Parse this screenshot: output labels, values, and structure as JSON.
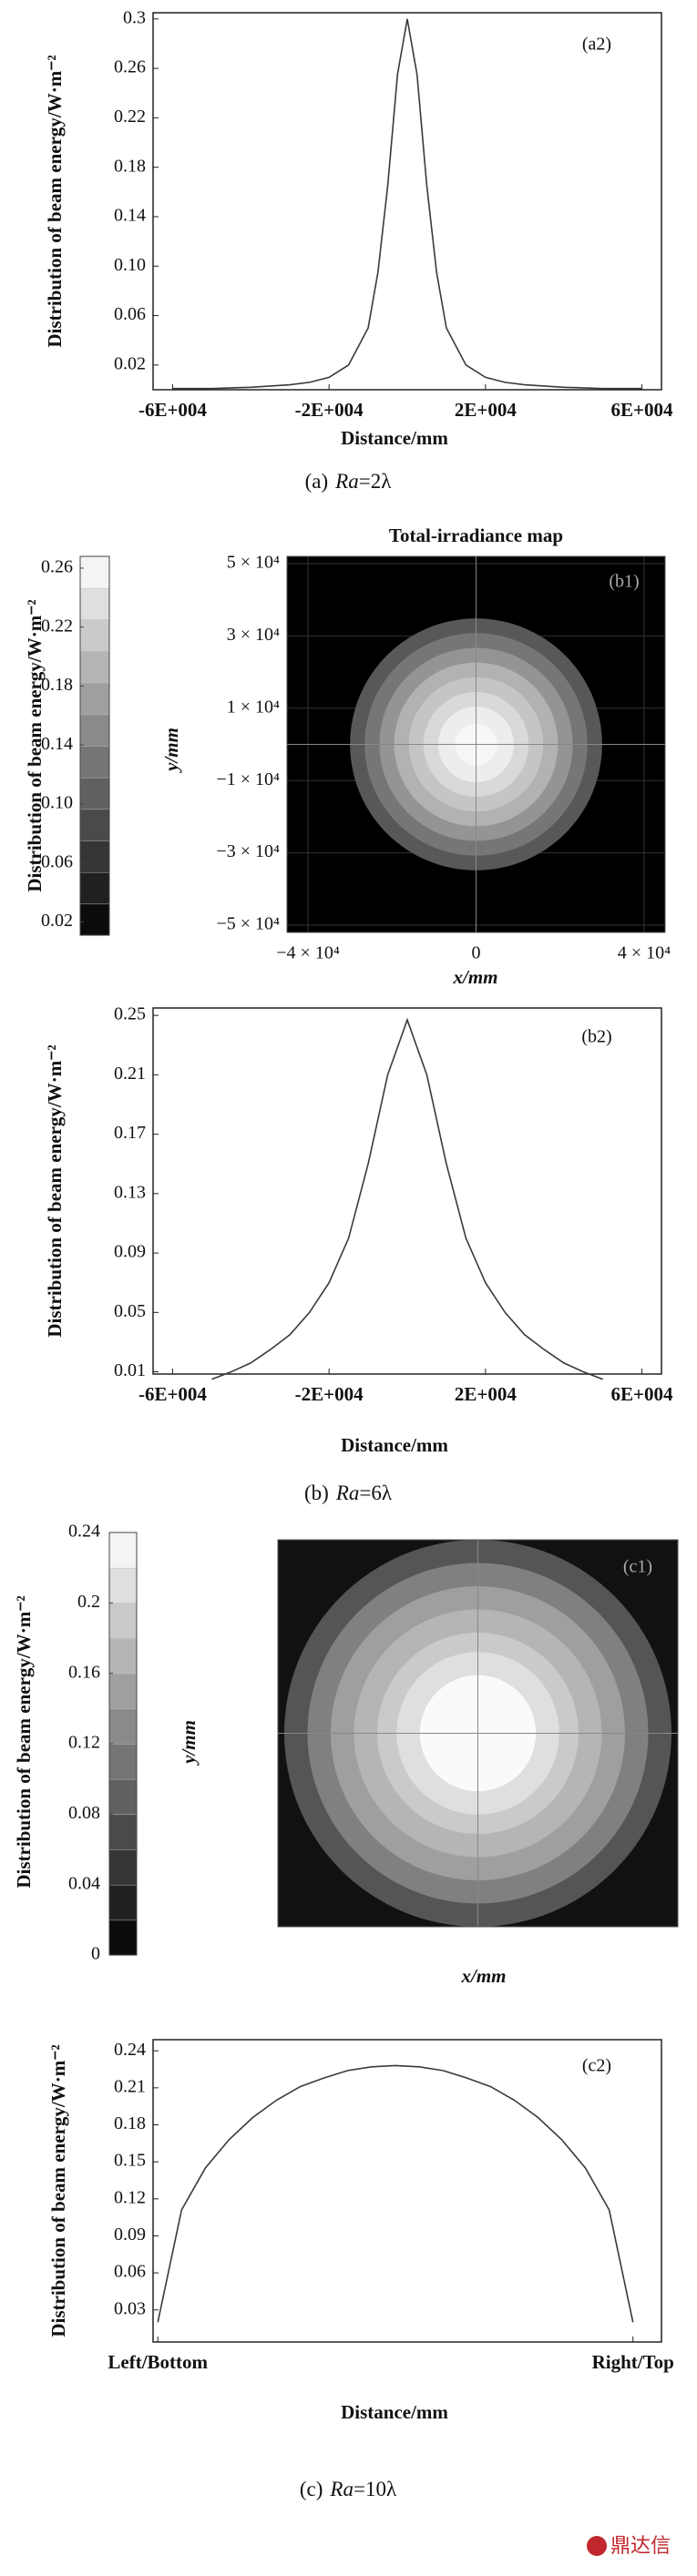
{
  "chart_data": [
    {
      "type": "line",
      "panel_label": "(a2)",
      "ylabel": "Distribution of beam energy/W·m⁻²",
      "xlabel": "Distance/mm",
      "color": "#3a3a3a",
      "x": [
        -60000,
        -50000,
        -40000,
        -30000,
        -25000,
        -20000,
        -15000,
        -10000,
        -7500,
        -5000,
        -2500,
        0,
        2500,
        5000,
        7500,
        10000,
        15000,
        20000,
        25000,
        30000,
        40000,
        50000,
        60000
      ],
      "values": [
        0.001,
        0.001,
        0.002,
        0.004,
        0.006,
        0.01,
        0.02,
        0.05,
        0.095,
        0.165,
        0.255,
        0.3,
        0.255,
        0.165,
        0.095,
        0.05,
        0.02,
        0.01,
        0.006,
        0.004,
        0.002,
        0.001,
        0.001
      ],
      "xlim": [
        -65000,
        65000
      ],
      "xticks": [
        {
          "value": -60000,
          "label": "-6E+004"
        },
        {
          "value": -20000,
          "label": "-2E+004"
        },
        {
          "value": 20000,
          "label": "2E+004"
        },
        {
          "value": 60000,
          "label": "6E+004"
        }
      ],
      "ylim": [
        0,
        0.305
      ],
      "yticks": [
        0.02,
        0.06,
        {
          "value": 0.1,
          "label": "0.10"
        },
        0.14,
        0.18,
        0.22,
        0.26,
        0.3
      ]
    },
    {
      "type": "heatmap",
      "title": "Total-irradiance map",
      "panel_label": "(b1)",
      "colorbar_label": "Distribution of beam energy/W·m⁻²",
      "ylabel": "y/mm",
      "xlabel": "x/mm",
      "grid": true,
      "colorbar_lim": [
        0.011,
        0.268
      ],
      "colorbar_ticks": [
        0.02,
        0.06,
        {
          "value": 0.1,
          "label": "0.10"
        },
        0.14,
        0.18,
        0.22,
        0.26
      ],
      "xlim": [
        -45000,
        45000
      ],
      "xticks": [
        {
          "value": -40000,
          "label": "−4 × 10⁴"
        },
        0,
        {
          "value": 40000,
          "label": "4 × 10⁴"
        }
      ],
      "ylim": [
        -52000,
        52000
      ],
      "yticks": [
        {
          "value": 50000,
          "label": "5 × 10⁴"
        },
        {
          "value": 30000,
          "label": "3 × 10⁴"
        },
        {
          "value": 10000,
          "label": "1 × 10⁴"
        },
        {
          "value": -10000,
          "label": "−1 × 10⁴"
        },
        {
          "value": -30000,
          "label": "−3 × 10⁴"
        },
        {
          "value": -50000,
          "label": "−5 × 10⁴"
        }
      ],
      "rings": {
        "radii": [
          30000,
          26500,
          23000,
          19500,
          16000,
          12500,
          9000,
          5000
        ],
        "values": [
          0.1,
          0.13,
          0.16,
          0.19,
          0.21,
          0.23,
          0.25,
          0.26
        ]
      }
    },
    {
      "type": "line",
      "panel_label": "(b2)",
      "ylabel": "Distribution of beam energy/W·m⁻²",
      "xlabel": "Distance/mm",
      "color": "#3a3a3a",
      "x": [
        -50000,
        -45000,
        -40000,
        -35000,
        -30000,
        -25000,
        -20000,
        -15000,
        -10000,
        -5000,
        0,
        5000,
        10000,
        15000,
        20000,
        25000,
        30000,
        35000,
        40000,
        45000,
        50000
      ],
      "values": [
        0.005,
        0.01,
        0.016,
        0.025,
        0.035,
        0.05,
        0.07,
        0.1,
        0.15,
        0.21,
        0.247,
        0.21,
        0.15,
        0.1,
        0.07,
        0.05,
        0.035,
        0.025,
        0.016,
        0.01,
        0.005
      ],
      "xlim": [
        -65000,
        65000
      ],
      "xticks": [
        {
          "value": -60000,
          "label": "-6E+004"
        },
        {
          "value": -20000,
          "label": "-2E+004"
        },
        {
          "value": 20000,
          "label": "2E+004"
        },
        {
          "value": 60000,
          "label": "6E+004"
        }
      ],
      "ylim": [
        0.0085,
        0.255
      ],
      "yticks": [
        0.01,
        0.05,
        0.09,
        0.13,
        0.17,
        0.21,
        0.25
      ]
    },
    {
      "type": "heatmap",
      "panel_label": "(c1)",
      "colorbar_label": "Distribution of beam energy/W·m⁻²",
      "ylabel": "y/mm",
      "xlabel": "x/mm",
      "grid": false,
      "colorbar_lim": [
        0,
        0.24
      ],
      "colorbar_ticks": [
        0,
        0.04,
        0.08,
        0.12,
        0.16,
        0.2,
        0.24
      ],
      "rings": {
        "radii": [
          1,
          0.88,
          0.76,
          0.64,
          0.52,
          0.42,
          0.3
        ],
        "values": [
          0.08,
          0.12,
          0.15,
          0.17,
          0.19,
          0.21,
          0.235
        ]
      }
    },
    {
      "type": "line",
      "panel_label": "(c2)",
      "ylabel": "Distribution of beam energy/W·m⁻²",
      "xlabel": "Distance/mm",
      "color": "#3a3a3a",
      "x": [
        0,
        0.05,
        0.1,
        0.15,
        0.2,
        0.25,
        0.3,
        0.35,
        0.4,
        0.45,
        0.5,
        0.55,
        0.6,
        0.65,
        0.7,
        0.75,
        0.8,
        0.85,
        0.9,
        0.95,
        1
      ],
      "values": [
        0.02,
        0.111,
        0.145,
        0.168,
        0.186,
        0.2,
        0.211,
        0.218,
        0.224,
        0.227,
        0.228,
        0.227,
        0.224,
        0.218,
        0.211,
        0.2,
        0.186,
        0.168,
        0.145,
        0.111,
        0.02
      ],
      "xlim": [
        -0.01,
        1.06
      ],
      "xticks": [
        {
          "value": 0,
          "label": "Left/Bottom"
        },
        {
          "value": 1,
          "label": "Right/Top"
        }
      ],
      "ylim": [
        0.004,
        0.249
      ],
      "yticks": [
        0.03,
        0.06,
        0.09,
        0.12,
        0.15,
        0.18,
        0.21,
        0.24
      ]
    }
  ],
  "captions": [
    [
      "(a)",
      "Ra",
      "=2λ"
    ],
    [
      "(b)",
      "Ra",
      "=6λ"
    ],
    [
      "(c)",
      "Ra",
      "=10λ"
    ]
  ],
  "watermark": "鼎达信"
}
